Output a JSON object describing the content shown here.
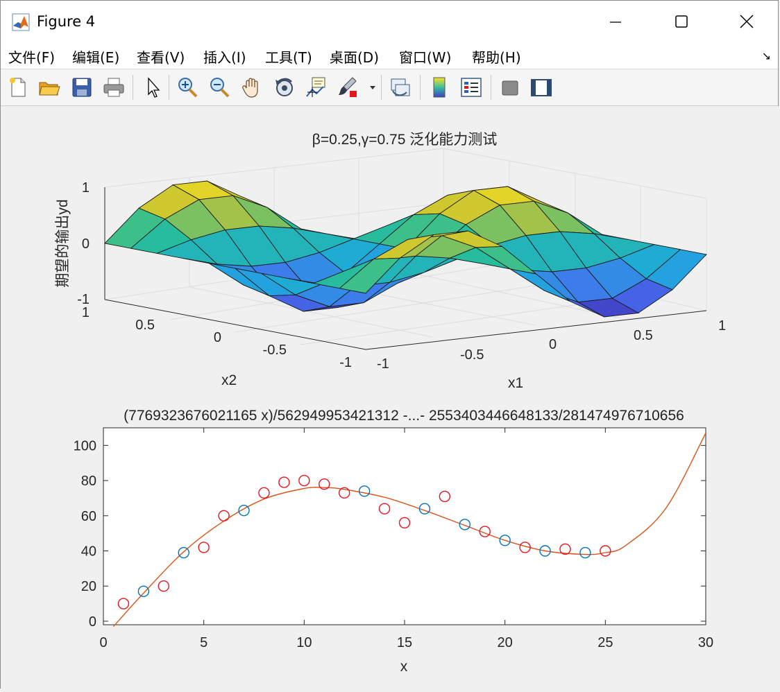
{
  "window": {
    "title": "Figure 4",
    "icon": "matlab-icon",
    "controls": [
      "minimize-icon",
      "maximize-icon",
      "close-icon"
    ]
  },
  "menu": {
    "items": [
      "文件(F)",
      "编辑(E)",
      "查看(V)",
      "插入(I)",
      "工具(T)",
      "桌面(D)",
      "窗口(W)",
      "帮助(H)"
    ],
    "dock_icon": "dock-arrow-icon"
  },
  "toolbar": {
    "buttons": [
      "new-figure-icon",
      "open-file-icon",
      "save-icon",
      "print-icon",
      "edit-plot-arrow-icon",
      "zoom-in-icon",
      "zoom-out-icon",
      "pan-hand-icon",
      "rotate-3d-icon",
      "data-cursor-icon",
      "brush-icon",
      "brush-dropdown-icon",
      "link-plot-icon",
      "colorbar-icon",
      "legend-icon",
      "hide-plot-tools-icon",
      "show-plot-tools-icon"
    ]
  },
  "colors": {
    "fit_line": "#d95319",
    "train_marker": "#e8141c",
    "test_marker": "#0072bd"
  },
  "chart_data": [
    {
      "type": "surface",
      "title": "β=0.25,γ=0.75 泛化能力测试",
      "xlabel": "x1",
      "ylabel": "x2",
      "zlabel": "期望的输出yd",
      "xlim": [
        -1,
        1
      ],
      "ylim": [
        -1,
        1
      ],
      "zlim": [
        -1,
        1
      ],
      "x_ticks": [
        "-1",
        "-0.5",
        "0",
        "0.5",
        "1"
      ],
      "y_ticks": [
        "-1",
        "-0.5",
        "0",
        "0.5",
        "1"
      ],
      "z_ticks": [
        "-1",
        "0",
        "1"
      ],
      "grid": true,
      "colormap": "parula"
    },
    {
      "type": "scatter+line",
      "title": "(7769323676021165 x)/562949953421312 -...- 2553403446648133/281474976710656",
      "xlabel": "x",
      "xlim": [
        0,
        30
      ],
      "ylim": [
        -2,
        110
      ],
      "x_ticks": [
        "0",
        "5",
        "10",
        "15",
        "20",
        "25",
        "30"
      ],
      "y_ticks": [
        "0",
        "20",
        "40",
        "60",
        "80",
        "100"
      ],
      "series": [
        {
          "x": [
            1,
            3,
            5,
            6,
            8,
            9,
            10,
            11,
            12,
            14,
            15,
            17,
            19,
            21,
            23,
            25
          ],
          "y": [
            10,
            20,
            42,
            60,
            73,
            79,
            80,
            78,
            73,
            64,
            56,
            71,
            51,
            42,
            41,
            40
          ]
        },
        {
          "x": [
            2,
            4,
            7,
            13,
            16,
            18,
            20,
            22,
            24
          ],
          "y": [
            17,
            39,
            63,
            74,
            64,
            55,
            46,
            40,
            39
          ]
        },
        {
          "x": [
            0.5,
            2,
            4,
            6,
            8,
            10,
            11,
            12,
            14,
            16,
            18,
            20,
            22,
            24,
            25,
            26,
            28,
            30
          ],
          "y": [
            -3,
            16,
            39.5,
            57,
            69.5,
            75.5,
            76,
            75,
            70.5,
            63,
            54.5,
            46,
            40,
            38,
            39,
            43,
            64,
            107
          ]
        }
      ]
    }
  ]
}
